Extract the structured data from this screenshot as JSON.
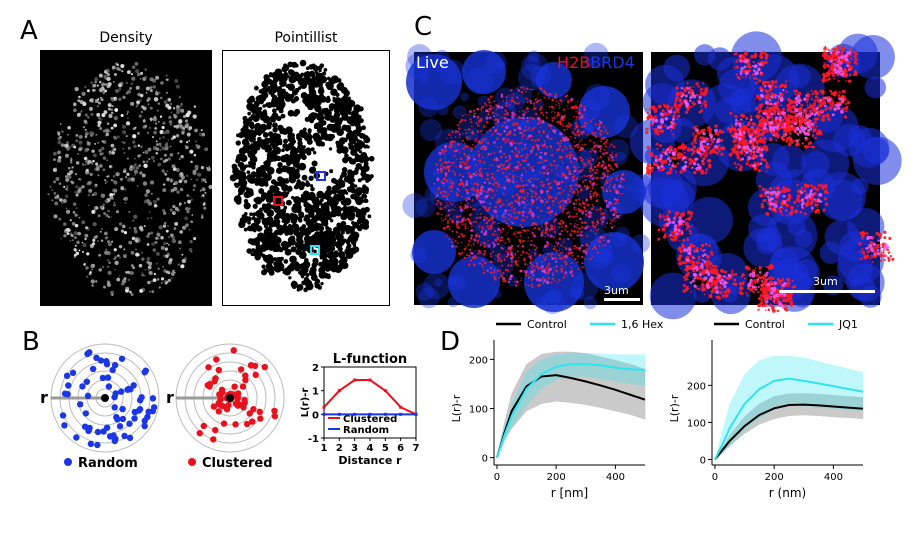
{
  "figure": {
    "panels": {
      "A": {
        "letter": "A",
        "titles": [
          "Density",
          "Pointillist"
        ]
      },
      "B": {
        "letter": "B",
        "r_label": "r",
        "labels": [
          "Random",
          "Clustered"
        ],
        "chart_title": "L-function"
      },
      "C": {
        "letter": "C",
        "live": "Live",
        "h2b": "H2B",
        "brd4": "BRD4",
        "scale": [
          "3um",
          "3um"
        ]
      },
      "D": {
        "letter": "D"
      }
    },
    "colors": {
      "red": "#e8111c",
      "blue": "#1a36e6",
      "cyan": "#2ee5ee",
      "black": "#000000",
      "shade_gray": "#8c8c8c"
    }
  },
  "chart_data": [
    {
      "type": "line",
      "title": "L-function",
      "xlabel": "Distance r",
      "ylabel": "L(r)-r",
      "x": [
        1,
        2,
        3,
        4,
        5,
        6,
        7
      ],
      "xticks": [
        "1",
        "2",
        "3",
        "4",
        "5",
        "6",
        "7"
      ],
      "yticks": [
        "-1",
        "0",
        "1",
        "2"
      ],
      "ylim": [
        -1,
        2
      ],
      "xlim": [
        1,
        7
      ],
      "legend": "bottom",
      "series": [
        {
          "name": "Clustered",
          "color": "#e8111c",
          "values": [
            0.3,
            1.0,
            1.45,
            1.45,
            1.0,
            0.3,
            0.0
          ]
        },
        {
          "name": "Random",
          "color": "#1a36e6",
          "values": [
            0,
            0,
            0,
            0,
            0,
            0,
            0
          ]
        }
      ]
    },
    {
      "type": "line",
      "xlabel": "r [nm]",
      "ylabel": "L(r)-r",
      "x": [
        0,
        25,
        50,
        100,
        150,
        200,
        250,
        300,
        350,
        400,
        450,
        500
      ],
      "xticks": [
        "0",
        "200",
        "400"
      ],
      "yticks": [
        "0",
        "100",
        "200"
      ],
      "xlim": [
        -10,
        500
      ],
      "ylim": [
        -15,
        215
      ],
      "legend": "top",
      "series": [
        {
          "name": "Control",
          "color": "#000000",
          "values": [
            0,
            50,
            95,
            145,
            165,
            168,
            162,
            155,
            147,
            138,
            128,
            118
          ],
          "upper": [
            0,
            70,
            130,
            190,
            210,
            215,
            215,
            212,
            205,
            198,
            190,
            180
          ],
          "lower": [
            0,
            35,
            60,
            95,
            110,
            115,
            112,
            108,
            102,
            95,
            88,
            78
          ]
        },
        {
          "name": "1,6 Hex",
          "color": "#2ee5ee",
          "values": [
            0,
            45,
            85,
            140,
            170,
            185,
            190,
            190,
            188,
            183,
            180,
            178
          ],
          "upper": [
            0,
            60,
            110,
            175,
            200,
            210,
            213,
            213,
            212,
            210,
            210,
            210
          ],
          "lower": [
            0,
            30,
            60,
            105,
            140,
            158,
            165,
            165,
            160,
            155,
            150,
            145
          ]
        }
      ]
    },
    {
      "type": "line",
      "xlabel": "r (nm)",
      "ylabel": "L(r)-r",
      "x": [
        0,
        25,
        50,
        100,
        150,
        200,
        250,
        300,
        350,
        400,
        450,
        500
      ],
      "xticks": [
        "0",
        "200",
        "400"
      ],
      "yticks": [
        "0",
        "100",
        "200"
      ],
      "xlim": [
        -10,
        500
      ],
      "ylim": [
        -15,
        290
      ],
      "legend": "top",
      "series": [
        {
          "name": "Control",
          "color": "#000000",
          "values": [
            0,
            25,
            50,
            90,
            120,
            138,
            147,
            148,
            146,
            143,
            140,
            137
          ],
          "upper": [
            0,
            32,
            65,
            115,
            150,
            170,
            177,
            178,
            176,
            173,
            170,
            167
          ],
          "lower": [
            0,
            18,
            37,
            70,
            95,
            110,
            118,
            120,
            118,
            115,
            113,
            110
          ]
        },
        {
          "name": "JQ1",
          "color": "#2ee5ee",
          "values": [
            0,
            40,
            85,
            150,
            190,
            212,
            218,
            212,
            205,
            198,
            190,
            183
          ],
          "upper": [
            0,
            80,
            150,
            230,
            268,
            280,
            280,
            275,
            265,
            255,
            245,
            235
          ],
          "lower": [
            0,
            15,
            35,
            80,
            110,
            135,
            145,
            145,
            140,
            137,
            133,
            130
          ]
        }
      ]
    }
  ]
}
